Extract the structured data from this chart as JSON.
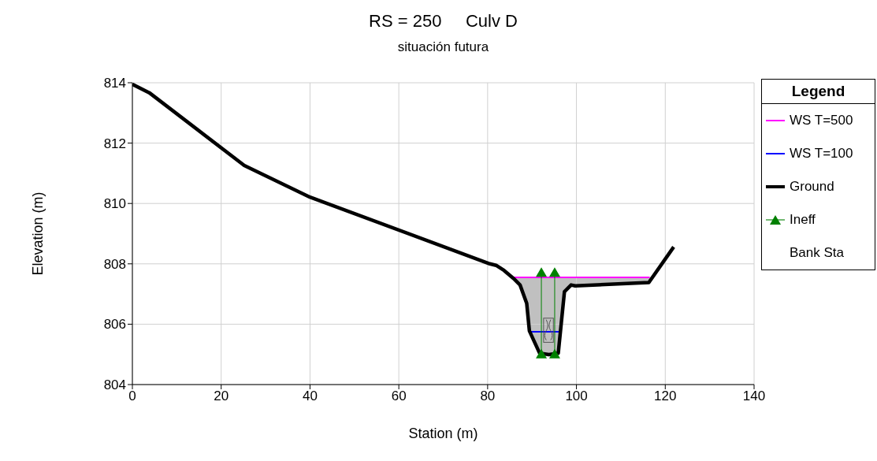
{
  "chart_data": {
    "type": "line",
    "title": "RS = 250     Culv D",
    "subtitle": "situación futura",
    "xlabel": "Station (m)",
    "ylabel": "Elevation (m)",
    "xlim": [
      0,
      140
    ],
    "xticks": [
      0,
      20,
      40,
      60,
      80,
      100,
      120,
      140
    ],
    "ylim": [
      804,
      814
    ],
    "yticks": [
      804,
      806,
      808,
      810,
      812,
      814
    ],
    "grid": true,
    "legend": "right",
    "legend_title": "Legend",
    "series": [
      {
        "name": "WS T=500",
        "color": "#ff00ff",
        "x": [
          85.5,
          116.5
        ],
        "values": [
          807.55,
          807.55
        ]
      },
      {
        "name": "WS T=100",
        "color": "#0000ff",
        "x": [
          89.4,
          96.4
        ],
        "values": [
          805.75,
          805.75
        ]
      },
      {
        "name": "Ground",
        "color": "#000000",
        "x": [
          0,
          3.8,
          25.2,
          40.0,
          80.5,
          81.9,
          83.7,
          85.8,
          87.3,
          88.8,
          89.4,
          91.7,
          93.8,
          95.9,
          97.3,
          98.8,
          99.7,
          116.3,
          121.9
        ],
        "values": [
          813.95,
          813.67,
          811.26,
          810.21,
          808.0,
          807.95,
          807.78,
          807.52,
          807.3,
          806.69,
          805.78,
          805.04,
          804.99,
          805.04,
          807.08,
          807.3,
          807.27,
          807.38,
          808.56
        ]
      },
      {
        "name": "Ineff",
        "color": "#008000",
        "marker": "triangle",
        "x": [
          92.1,
          92.1,
          null,
          95.1,
          95.1
        ],
        "values": [
          805.0,
          807.7,
          null,
          807.7,
          805.0
        ]
      },
      {
        "name": "Bank Sta"
      }
    ]
  }
}
